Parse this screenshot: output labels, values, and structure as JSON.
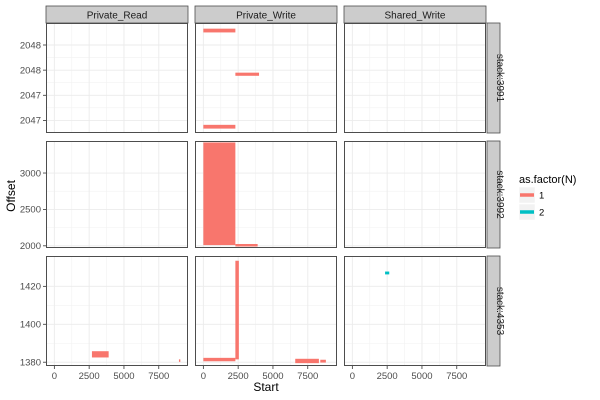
{
  "chart_data": {
    "type": "faceted-segment",
    "xlabel": "Start",
    "ylabel": "Offset",
    "columns": [
      "Private_Read",
      "Private_Write",
      "Shared_Write"
    ],
    "rows": [
      "stack:3991",
      "stack:3992",
      "stack:4353"
    ],
    "x_ticks": [
      0,
      2500,
      5000,
      7500
    ],
    "xlim": [
      -600,
      9600
    ],
    "row_axes": [
      {
        "ylim": [
          2046.6,
          2048.35
        ],
        "ticks": [
          2046.8,
          2047.2,
          2047.6,
          2048.0
        ],
        "tick_labels": [
          "2047",
          "2047",
          "2048",
          "2048"
        ]
      },
      {
        "ylim": [
          1970,
          3440
        ],
        "ticks": [
          2000,
          2500,
          3000
        ],
        "tick_labels": [
          "2000",
          "2500",
          "3000"
        ]
      },
      {
        "ylim": [
          1378,
          1436
        ],
        "ticks": [
          1380,
          1400,
          1420
        ],
        "tick_labels": [
          "1380",
          "1400",
          "1420"
        ]
      }
    ],
    "legend": {
      "title": "as.factor(N)",
      "items": [
        {
          "label": "1",
          "color": "#F8766D"
        },
        {
          "label": "2",
          "color": "#00BFC4"
        }
      ]
    },
    "colors": {
      "1": "#F8766D",
      "2": "#00BFC4"
    },
    "segments": [
      {
        "col": 1,
        "row": 0,
        "n": 1,
        "x0": 0,
        "x1": 2300,
        "y0": 2048.2,
        "y1": 2048.26
      },
      {
        "col": 1,
        "row": 0,
        "n": 1,
        "x0": 2300,
        "x1": 4000,
        "y0": 2047.51,
        "y1": 2047.56
      },
      {
        "col": 1,
        "row": 0,
        "n": 1,
        "x0": 0,
        "x1": 2300,
        "y0": 2046.67,
        "y1": 2046.73
      },
      {
        "col": 1,
        "row": 1,
        "n": 1,
        "x0": 0,
        "x1": 2300,
        "y0": 2010,
        "y1": 3420
      },
      {
        "col": 1,
        "row": 1,
        "n": 1,
        "x0": 2300,
        "x1": 3900,
        "y0": 1998,
        "y1": 2025
      },
      {
        "col": 0,
        "row": 2,
        "n": 1,
        "x0": 2700,
        "x1": 3900,
        "y0": 1382.5,
        "y1": 1385.8
      },
      {
        "col": 0,
        "row": 2,
        "n": 1,
        "x0": 8950,
        "x1": 9050,
        "y0": 1380.3,
        "y1": 1381.5
      },
      {
        "col": 1,
        "row": 2,
        "n": 1,
        "x0": 0,
        "x1": 2300,
        "y0": 1380.5,
        "y1": 1382.3
      },
      {
        "col": 1,
        "row": 2,
        "n": 1,
        "x0": 2300,
        "x1": 2550,
        "y0": 1381.5,
        "y1": 1433.5
      },
      {
        "col": 1,
        "row": 2,
        "n": 1,
        "x0": 6600,
        "x1": 8300,
        "y0": 1379.5,
        "y1": 1381.8
      },
      {
        "col": 1,
        "row": 2,
        "n": 1,
        "x0": 8400,
        "x1": 8800,
        "y0": 1379.8,
        "y1": 1381.3
      },
      {
        "col": 2,
        "row": 2,
        "n": 2,
        "x0": 2350,
        "x1": 2650,
        "y0": 1426.3,
        "y1": 1427.8
      }
    ]
  }
}
